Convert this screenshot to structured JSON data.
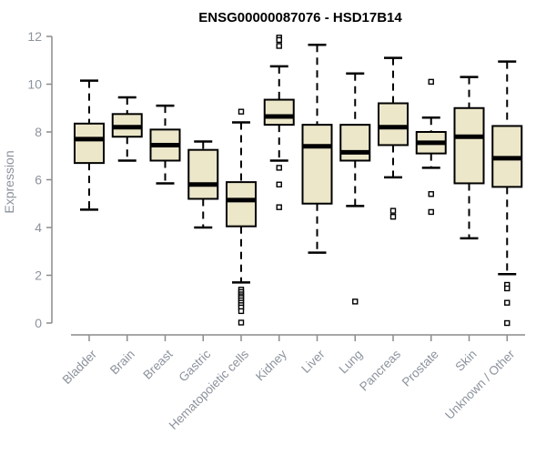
{
  "chart_data": {
    "type": "boxplot",
    "title": "ENSG00000087076 - HSD17B14",
    "ylabel": "Expression",
    "xlabel": "",
    "ylim": [
      0,
      12
    ],
    "yticks": [
      0,
      2,
      4,
      6,
      8,
      10,
      12
    ],
    "grid": false,
    "legend": "none",
    "categories": [
      "Bladder",
      "Brain",
      "Breast",
      "Gastric",
      "Hematopoietic cells",
      "Kidney",
      "Liver",
      "Lung",
      "Pancreas",
      "Prostate",
      "Skin",
      "Unknown / Other"
    ],
    "series": [
      {
        "name": "Bladder",
        "whisker_low": 4.75,
        "q1": 6.7,
        "median": 7.7,
        "q3": 8.35,
        "whisker_high": 10.15,
        "outliers": []
      },
      {
        "name": "Brain",
        "whisker_low": 6.8,
        "q1": 7.8,
        "median": 8.2,
        "q3": 8.75,
        "whisker_high": 9.45,
        "outliers": []
      },
      {
        "name": "Breast",
        "whisker_low": 5.85,
        "q1": 6.8,
        "median": 7.45,
        "q3": 8.1,
        "whisker_high": 9.1,
        "outliers": []
      },
      {
        "name": "Gastric",
        "whisker_low": 4.0,
        "q1": 5.2,
        "median": 5.8,
        "q3": 7.25,
        "whisker_high": 7.6,
        "outliers": []
      },
      {
        "name": "Hematopoietic cells",
        "whisker_low": 1.7,
        "q1": 4.05,
        "median": 5.15,
        "q3": 5.9,
        "whisker_high": 8.4,
        "outliers": [
          8.85,
          1.4,
          1.3,
          1.2,
          1.12,
          1.05,
          0.95,
          0.85,
          0.75,
          0.65,
          0.5,
          0.02
        ]
      },
      {
        "name": "Kidney",
        "whisker_low": 6.8,
        "q1": 8.3,
        "median": 8.65,
        "q3": 9.35,
        "whisker_high": 10.75,
        "outliers": [
          11.95,
          11.85,
          11.6,
          6.5,
          5.8,
          4.85
        ]
      },
      {
        "name": "Liver",
        "whisker_low": 2.95,
        "q1": 5.0,
        "median": 7.4,
        "q3": 8.3,
        "whisker_high": 11.65,
        "outliers": []
      },
      {
        "name": "Lung",
        "whisker_low": 4.9,
        "q1": 6.8,
        "median": 7.15,
        "q3": 8.3,
        "whisker_high": 10.45,
        "outliers": [
          0.9
        ]
      },
      {
        "name": "Pancreas",
        "whisker_low": 6.1,
        "q1": 7.45,
        "median": 8.2,
        "q3": 9.2,
        "whisker_high": 11.1,
        "outliers": [
          4.7,
          4.45
        ]
      },
      {
        "name": "Prostate",
        "whisker_low": 6.5,
        "q1": 7.1,
        "median": 7.55,
        "q3": 8.0,
        "whisker_high": 8.6,
        "outliers": [
          10.1,
          5.4,
          4.65
        ]
      },
      {
        "name": "Skin",
        "whisker_low": 3.55,
        "q1": 5.85,
        "median": 7.8,
        "q3": 9.0,
        "whisker_high": 10.3,
        "outliers": []
      },
      {
        "name": "Unknown / Other",
        "whisker_low": 2.05,
        "q1": 5.7,
        "median": 6.9,
        "q3": 8.25,
        "whisker_high": 10.95,
        "outliers": [
          1.6,
          1.45,
          0.85,
          0.0
        ]
      }
    ],
    "colors": {
      "box_fill": "#ece7c9",
      "box_stroke": "#000000",
      "median_stroke": "#000000",
      "whisker_stroke": "#000000",
      "outlier_stroke": "#000000",
      "axis_color": "#8c8c8c",
      "tick_label_color": "#8c929c",
      "title_color": "#000000",
      "background": "#ffffff"
    }
  }
}
